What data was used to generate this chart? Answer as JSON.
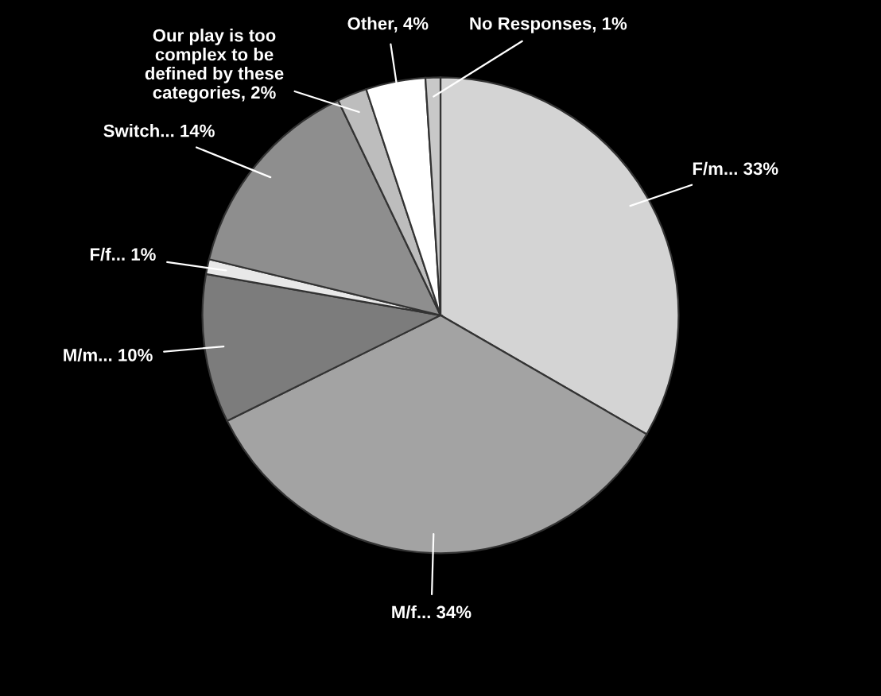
{
  "chart_data": {
    "type": "pie",
    "categories": [
      "F/m...",
      "M/f...",
      "M/m...",
      "F/f...",
      "Switch...",
      "Our play is too complex to be defined by these categories",
      "Other",
      "No Responses"
    ],
    "values": [
      33,
      34,
      10,
      1,
      14,
      2,
      4,
      1
    ],
    "colors": [
      "#d4d4d4",
      "#a3a3a3",
      "#7c7c7c",
      "#e8e8e8",
      "#8e8e8e",
      "#bdbdbd",
      "#ffffff",
      "#c8c8c8"
    ],
    "value_labels": [
      "33%",
      "34%",
      "10%",
      "1%",
      "14%",
      "2%",
      "4%",
      "1%"
    ],
    "legend": false
  }
}
